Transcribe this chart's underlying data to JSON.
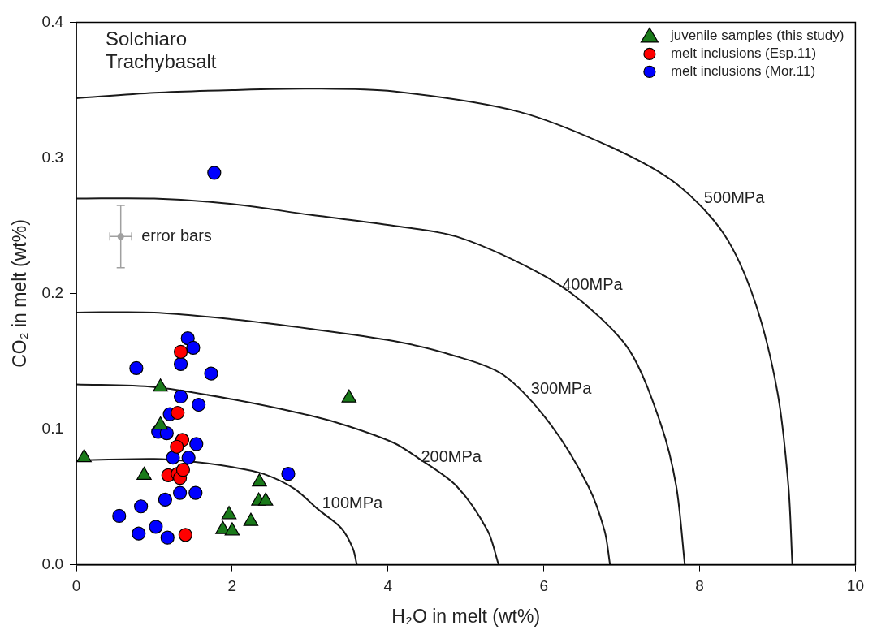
{
  "chart_data": {
    "type": "scatter",
    "title": "Solchiaro Trachybasalt",
    "xlabel": "H₂O in melt (wt%)",
    "ylabel": "CO₂ in melt (wt%)",
    "xlim": [
      0,
      10
    ],
    "xticks": [
      0,
      2,
      4,
      6,
      8,
      10
    ],
    "ylim": [
      0,
      0.4
    ],
    "yticks": [
      {
        "value": 0,
        "label": "0.0"
      },
      0.1,
      0.2,
      0.3,
      0.4
    ],
    "grid": false,
    "legend": "top right",
    "series": [
      {
        "name": "juvenile samples (this study)",
        "color": "#1a7a1a",
        "marker": "triangle",
        "x": [
          0.1,
          0.87,
          1.08,
          1.08,
          3.5,
          2.35,
          2.34,
          2.43,
          1.96,
          1.88,
          2.0,
          2.24
        ],
        "values": [
          0.079,
          0.066,
          0.131,
          0.103,
          0.123,
          0.061,
          0.047,
          0.047,
          0.037,
          0.026,
          0.025,
          0.032
        ]
      },
      {
        "name": "melt inclusions (Esp.11)",
        "color": "#ff0000",
        "marker": "circle",
        "x": [
          1.34,
          1.3,
          1.36,
          1.29,
          1.18,
          1.3,
          1.33,
          1.37,
          1.4
        ],
        "values": [
          0.157,
          0.112,
          0.092,
          0.087,
          0.066,
          0.067,
          0.064,
          0.07,
          0.022
        ]
      },
      {
        "name": "melt inclusions (Mor.11)",
        "color": "#0000ff",
        "marker": "circle",
        "x": [
          1.77,
          1.43,
          1.5,
          0.77,
          1.34,
          1.73,
          1.34,
          1.57,
          1.2,
          1.05,
          1.16,
          1.54,
          1.24,
          1.44,
          1.33,
          1.53,
          1.14,
          0.83,
          0.55,
          0.8,
          1.02,
          1.17,
          2.72
        ],
        "values": [
          0.289,
          0.167,
          0.16,
          0.145,
          0.148,
          0.141,
          0.124,
          0.118,
          0.111,
          0.098,
          0.097,
          0.089,
          0.079,
          0.079,
          0.053,
          0.053,
          0.048,
          0.043,
          0.036,
          0.023,
          0.028,
          0.02,
          0.067
        ]
      },
      {
        "type": "line",
        "name": "100MPa",
        "color": "#1a1a1a",
        "x": [
          0,
          1,
          1.5,
          2,
          2.4,
          2.8,
          3.1,
          3.4,
          3.55,
          3.6
        ],
        "values": [
          0.077,
          0.078,
          0.076,
          0.072,
          0.067,
          0.056,
          0.041,
          0.027,
          0.012,
          0
        ]
      },
      {
        "type": "line",
        "name": "200MPa",
        "color": "#1a1a1a",
        "x": [
          0,
          1,
          2,
          3,
          3.5,
          4.07,
          4.38,
          4.88,
          5.28,
          5.42
        ],
        "values": [
          0.133,
          0.131,
          0.122,
          0.11,
          0.102,
          0.09,
          0.079,
          0.058,
          0.025,
          0
        ]
      },
      {
        "type": "line",
        "name": "300MPa",
        "color": "#1a1a1a",
        "x": [
          0,
          1,
          2,
          3,
          4.07,
          4.8,
          5.48,
          6.08,
          6.57,
          6.78,
          6.85
        ],
        "values": [
          0.186,
          0.186,
          0.181,
          0.174,
          0.165,
          0.155,
          0.14,
          0.104,
          0.058,
          0.025,
          0
        ]
      },
      {
        "type": "line",
        "name": "400MPa",
        "color": "#1a1a1a",
        "x": [
          0,
          1,
          2,
          3,
          4.07,
          4.88,
          5.88,
          6.49,
          7.1,
          7.5,
          7.7,
          7.81
        ],
        "values": [
          0.27,
          0.27,
          0.266,
          0.258,
          0.25,
          0.242,
          0.217,
          0.194,
          0.158,
          0.104,
          0.058,
          0
        ]
      },
      {
        "type": "line",
        "name": "500MPa",
        "color": "#1a1a1a",
        "x": [
          0,
          1,
          2,
          3,
          4.07,
          5.68,
          6.9,
          7.7,
          8.31,
          8.71,
          9.0,
          9.14,
          9.19
        ],
        "values": [
          0.344,
          0.348,
          0.35,
          0.351,
          0.349,
          0.334,
          0.307,
          0.281,
          0.244,
          0.194,
          0.127,
          0.058,
          0
        ]
      },
      {
        "color": "#a0a0a0",
        "x": [
          0.57
        ],
        "values": [
          0.242
        ],
        "errors": [
          0.023
        ],
        "xerrors": [
          0.14
        ]
      }
    ],
    "annotations": [
      "error bars"
    ]
  }
}
